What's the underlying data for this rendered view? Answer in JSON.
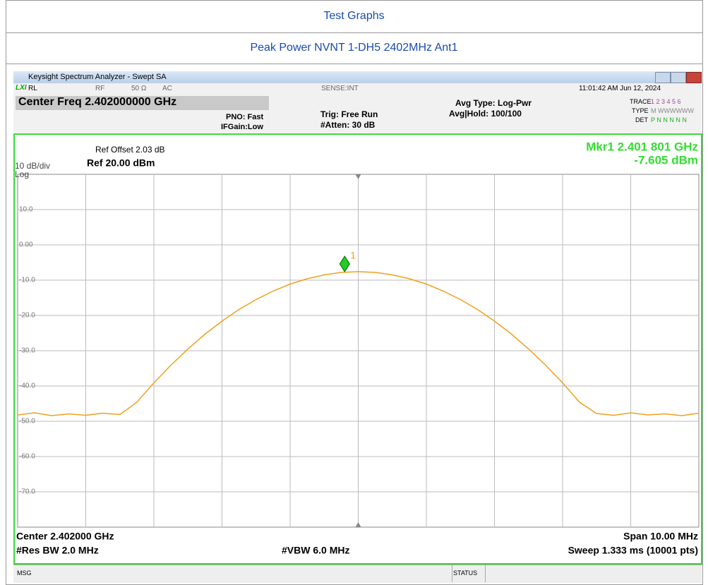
{
  "header": {
    "title": "Test Graphs",
    "subtitle": "Peak Power NVNT 1-DH5 2402MHz Ant1"
  },
  "window": {
    "title": "Keysight Spectrum Analyzer - Swept SA"
  },
  "status": {
    "lxi": "LXI",
    "rl": "RL",
    "rf": "RF",
    "impedance": "50 Ω",
    "coupling": "AC",
    "sense": "SENSE:INT",
    "datetime": "11:01:42 AM Jun 12, 2024"
  },
  "settings": {
    "center_freq": "Center Freq 2.402000000 GHz",
    "pno": "PNO: Fast",
    "ifgain": "IFGain:Low",
    "trig": "Trig: Free Run",
    "atten": "#Atten: 30 dB",
    "avg_type": "Avg Type: Log-Pwr",
    "avg_hold": "Avg|Hold: 100/100",
    "trace": "TRACE",
    "trace_nums": "1 2 3 4 5 6",
    "type": "TYPE",
    "type_val": "M WWWWWW",
    "det": "DET",
    "det_val": "P N N N N N"
  },
  "chart_data": {
    "type": "line",
    "ref_offset": "Ref Offset 2.03 dB",
    "ref_level": "Ref 20.00 dBm",
    "scale": "10 dB/div",
    "scale_type": "Log",
    "marker_readout": [
      "Mkr1 2.401 801 GHz",
      "-7.605 dBm"
    ],
    "marker_label": "1",
    "marker": {
      "x": 2.401801,
      "y": -7.605,
      "color": "#22cc22"
    },
    "xlim": [
      2.397,
      2.407
    ],
    "ylim": [
      -80,
      20
    ],
    "yticks": [
      {
        "value": 10,
        "label": "10.0"
      },
      {
        "value": 0,
        "label": "0.00"
      },
      {
        "value": -10,
        "label": "-10.0"
      },
      {
        "value": -20,
        "label": "-20.0"
      },
      {
        "value": -30,
        "label": "-30.0"
      },
      {
        "value": -40,
        "label": "-40.0"
      },
      {
        "value": -50,
        "label": "-50.0"
      },
      {
        "value": -60,
        "label": "-60.0"
      },
      {
        "value": -70,
        "label": "-70.0"
      }
    ],
    "grid": true,
    "x": [
      2.397,
      2.39725,
      2.3975,
      2.39775,
      2.398,
      2.39825,
      2.3985,
      2.39875,
      2.399,
      2.39925,
      2.3995,
      2.39975,
      2.4,
      2.40025,
      2.4005,
      2.40075,
      2.401,
      2.40125,
      2.4015,
      2.40175,
      2.402,
      2.40225,
      2.4025,
      2.40275,
      2.403,
      2.40325,
      2.4035,
      2.40375,
      2.404,
      2.40425,
      2.4045,
      2.40475,
      2.405,
      2.40525,
      2.4055,
      2.40575,
      2.406,
      2.40625,
      2.4065,
      2.40675,
      2.407
    ],
    "series": [
      {
        "color": "#f0a020",
        "values": [
          -48.2,
          -47.6,
          -48.4,
          -47.9,
          -48.3,
          -47.7,
          -48.1,
          -44.6,
          -39.1,
          -34.1,
          -29.5,
          -25.3,
          -21.6,
          -18.3,
          -15.5,
          -13.1,
          -11.1,
          -9.6,
          -8.5,
          -7.8,
          -7.6,
          -7.8,
          -8.5,
          -9.6,
          -11.1,
          -13.1,
          -15.5,
          -18.3,
          -21.6,
          -25.3,
          -29.5,
          -34.1,
          -39.1,
          -44.6,
          -47.8,
          -48.3,
          -47.6,
          -48.2,
          -47.9,
          -48.4,
          -47.7
        ]
      }
    ],
    "footer": {
      "center": "Center 2.402000 GHz",
      "res_bw": "#Res BW 2.0 MHz",
      "vbw": "#VBW 6.0 MHz",
      "span": "Span 10.00 MHz",
      "sweep": "Sweep  1.333 ms (10001 pts)"
    }
  },
  "bottom": {
    "msg": "MSG",
    "status": "STATUS"
  }
}
